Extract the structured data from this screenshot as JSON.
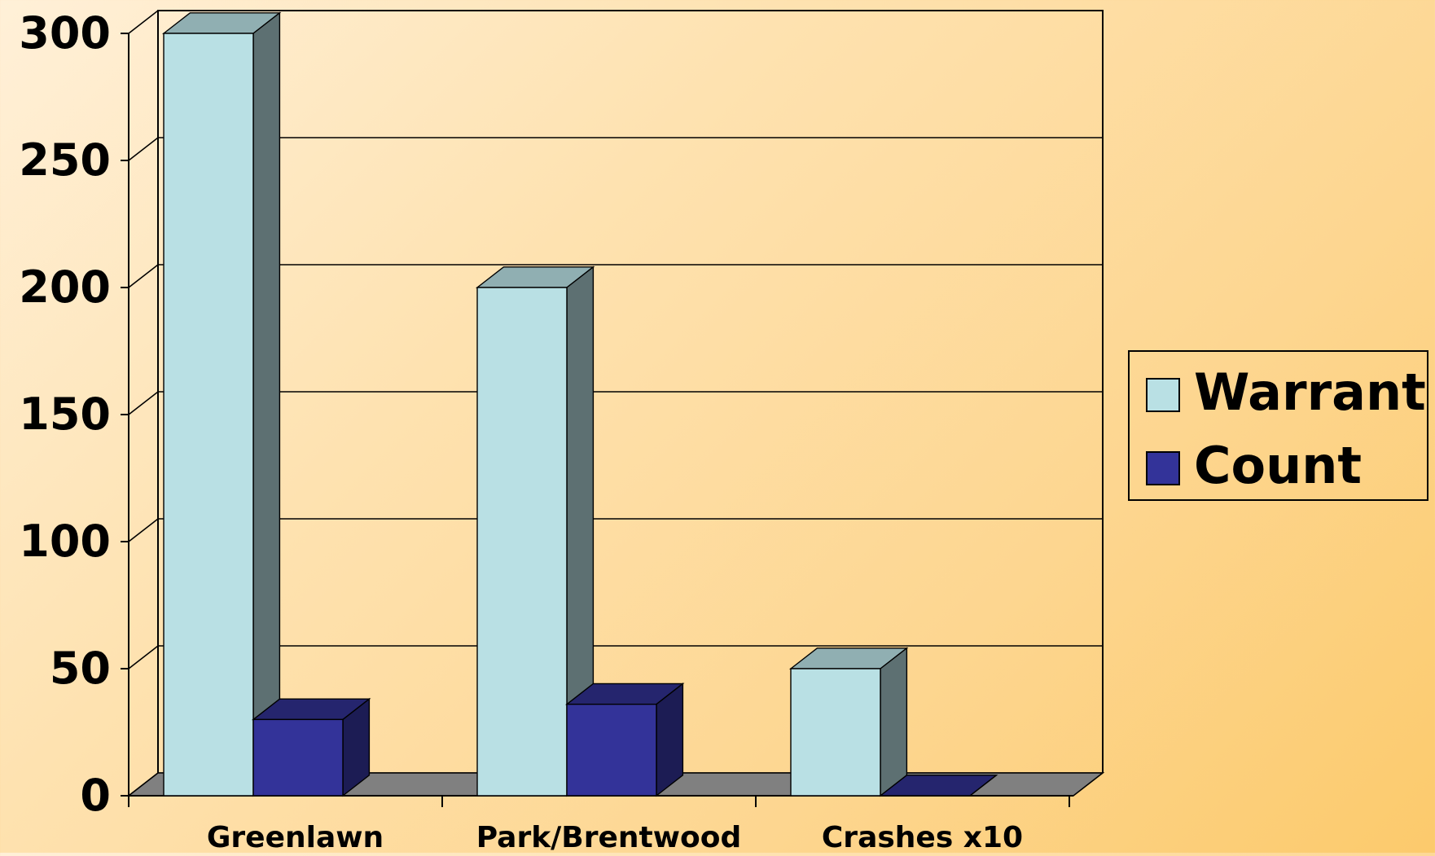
{
  "chart_data": {
    "type": "bar",
    "categories": [
      "Greenlawn",
      "Park/Brentwood",
      "Crashes x10"
    ],
    "series": [
      {
        "name": "Warrant",
        "values": [
          300,
          200,
          50
        ]
      },
      {
        "name": "Count",
        "values": [
          30,
          36,
          0
        ]
      }
    ],
    "ylim": [
      0,
      300
    ],
    "y_ticks": [
      "0",
      "50",
      "100",
      "150",
      "200",
      "250",
      "300"
    ],
    "grid": true,
    "legend": "right",
    "style": "3d",
    "colors": {
      "Warrant": "#b9e0e4",
      "Count": "#333399",
      "floor": "#808080"
    }
  }
}
